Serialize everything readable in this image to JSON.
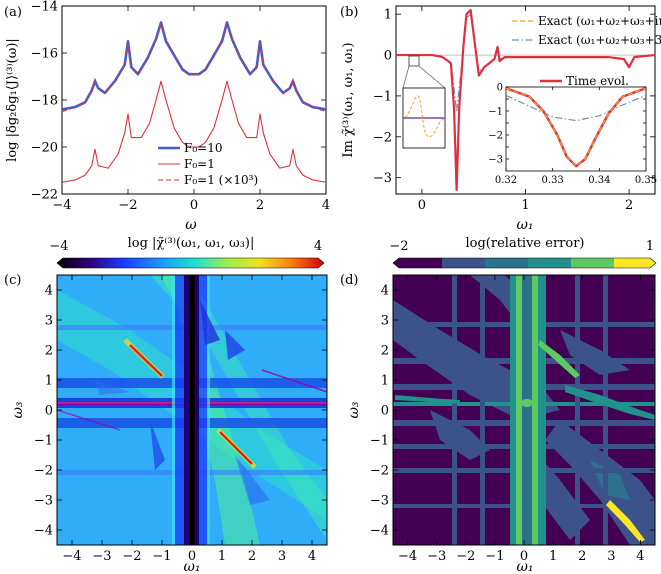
{
  "panels": {
    "a": {
      "label": "(a)",
      "ylabel": "log |δg₂δg₁⟨J⟩⁽³⁾(ω)|",
      "xlabel": "ω"
    },
    "b": {
      "label": "(b)",
      "ylabel": "Im χ̃⁽³⁾(ω₁, ω₁, ω₁)",
      "xlabel": "ω₁"
    },
    "c": {
      "label": "(c)",
      "title": "log |χ̃⁽³⁾(ω₁, ω₁, ω₃)|",
      "xlabel": "ω₁",
      "ylabel": "ω₃"
    },
    "d": {
      "label": "(d)",
      "title": "log(relative error)",
      "xlabel": "ω₁",
      "ylabel": "ω₃"
    }
  },
  "chart_data": [
    {
      "id": "a",
      "type": "line",
      "xlim": [
        -4,
        4
      ],
      "ylim": [
        -22,
        -14
      ],
      "xticks": [
        -4,
        -2,
        0,
        2,
        4
      ],
      "yticks": [
        -22,
        -20,
        -18,
        -16,
        -14
      ],
      "ytick_labels": [
        "−22",
        "−20",
        "−18",
        "−16",
        "−14"
      ],
      "xtick_labels": [
        "−4",
        "−2",
        "0",
        "2",
        "4"
      ],
      "legend_position": "lower-center",
      "series": [
        {
          "name": "F₀=10",
          "color": "#3b5fd9",
          "style": "solid",
          "x": [
            -4,
            -3.6,
            -3.3,
            -3.1,
            -3.0,
            -2.9,
            -2.7,
            -2.4,
            -2.1,
            -2.0,
            -1.9,
            -1.7,
            -1.4,
            -1.15,
            -1.0,
            -0.85,
            -0.6,
            -0.35,
            -0.15,
            0,
            0.15,
            0.35,
            0.6,
            0.85,
            1.0,
            1.15,
            1.4,
            1.7,
            1.9,
            2.0,
            2.1,
            2.4,
            2.7,
            2.9,
            3.0,
            3.1,
            3.3,
            3.6,
            4
          ],
          "y": [
            -18.4,
            -18.3,
            -18.1,
            -17.6,
            -17.2,
            -17.5,
            -17.7,
            -17.2,
            -16.5,
            -15.5,
            -16.6,
            -16.9,
            -16.2,
            -15.4,
            -14.7,
            -15.5,
            -16.1,
            -16.7,
            -16.9,
            -16.9,
            -16.9,
            -16.7,
            -16.1,
            -15.5,
            -14.7,
            -15.4,
            -16.2,
            -16.9,
            -16.6,
            -15.5,
            -16.5,
            -17.2,
            -17.7,
            -17.5,
            -17.2,
            -17.6,
            -18.1,
            -18.3,
            -18.4
          ]
        },
        {
          "name": "F₀=1",
          "color": "#e03040",
          "style": "solid",
          "x": [
            -4,
            -3.6,
            -3.3,
            -3.1,
            -3.0,
            -2.9,
            -2.6,
            -2.3,
            -2.1,
            -2.0,
            -1.9,
            -1.6,
            -1.35,
            -1.15,
            -1.0,
            -0.85,
            -0.6,
            -0.35,
            -0.15,
            0,
            0.15,
            0.35,
            0.6,
            0.85,
            1.0,
            1.15,
            1.35,
            1.6,
            1.9,
            2.0,
            2.1,
            2.3,
            2.6,
            2.9,
            3.0,
            3.1,
            3.3,
            3.6,
            4
          ],
          "y": [
            -21.5,
            -21.4,
            -21.2,
            -20.8,
            -20.1,
            -20.8,
            -20.9,
            -20.3,
            -19.4,
            -18.6,
            -19.6,
            -19.6,
            -19.0,
            -18.0,
            -17.2,
            -18.0,
            -19.2,
            -19.8,
            -20.0,
            -20.0,
            -20.0,
            -19.8,
            -19.2,
            -18.0,
            -17.2,
            -18.0,
            -19.0,
            -19.6,
            -19.6,
            -18.6,
            -19.4,
            -20.3,
            -20.9,
            -20.8,
            -20.1,
            -20.8,
            -21.2,
            -21.4,
            -21.5
          ]
        },
        {
          "name": "F₀=1 (×10³)",
          "color": "#e03040",
          "style": "dashed",
          "x": [
            -4,
            -3.6,
            -3.3,
            -3.1,
            -3.0,
            -2.9,
            -2.7,
            -2.4,
            -2.1,
            -2.0,
            -1.9,
            -1.7,
            -1.4,
            -1.15,
            -1.0,
            -0.85,
            -0.6,
            -0.35,
            -0.15,
            0,
            0.15,
            0.35,
            0.6,
            0.85,
            1.0,
            1.15,
            1.4,
            1.7,
            1.9,
            2.0,
            2.1,
            2.4,
            2.7,
            2.9,
            3.0,
            3.1,
            3.3,
            3.6,
            4
          ],
          "y": [
            -18.5,
            -18.3,
            -18.1,
            -17.6,
            -17.1,
            -17.5,
            -17.7,
            -17.2,
            -16.5,
            -15.6,
            -16.6,
            -16.9,
            -16.2,
            -15.4,
            -14.8,
            -15.4,
            -16.1,
            -16.7,
            -16.9,
            -16.9,
            -16.9,
            -16.7,
            -16.1,
            -15.4,
            -14.8,
            -15.4,
            -16.2,
            -16.9,
            -16.6,
            -15.6,
            -16.5,
            -17.2,
            -17.7,
            -17.5,
            -17.1,
            -17.6,
            -18.1,
            -18.3,
            -18.5
          ]
        }
      ]
    },
    {
      "id": "b",
      "type": "line",
      "xlim": [
        -0.25,
        2.25
      ],
      "ylim": [
        -3.4,
        1.2
      ],
      "xticks": [
        0,
        1,
        2
      ],
      "yticks": [
        -3,
        -2,
        -1,
        0,
        1
      ],
      "ytick_labels": [
        "−3",
        "−2",
        "−1",
        "0",
        "1"
      ],
      "xtick_labels": [
        "0",
        "1",
        "2"
      ],
      "legend_position": "top-right",
      "series": [
        {
          "name": "Exact (ω₁+ω₂+ω₃+iη)",
          "color": "#f0a020",
          "style": "dashed",
          "x": [
            -0.25,
            0.1,
            0.2,
            0.28,
            0.31,
            0.335,
            0.36,
            0.4,
            0.43,
            0.47,
            0.5,
            0.55,
            0.6,
            0.65,
            0.7,
            0.73,
            0.75,
            0.8,
            0.9,
            1.0,
            1.2,
            1.5,
            1.8,
            1.95,
            2.0,
            2.05,
            2.25
          ],
          "y": [
            0,
            0,
            -0.05,
            -0.2,
            -1.3,
            -3.3,
            -1.3,
            0.2,
            1.0,
            1.1,
            0.5,
            -0.5,
            -0.3,
            -0.2,
            -0.1,
            0.2,
            -0.15,
            -0.05,
            -0.05,
            -0.05,
            -0.05,
            -0.05,
            -0.05,
            -0.1,
            -0.3,
            -0.05,
            0
          ]
        },
        {
          "name": "Exact (ω₁+ω₂+ω₃+3iη)",
          "color": "#6f8fb5",
          "style": "dashdot",
          "x": [
            -0.25,
            0.1,
            0.2,
            0.28,
            0.31,
            0.335,
            0.36,
            0.4,
            0.43,
            0.47,
            0.5,
            0.55,
            0.6,
            0.65,
            0.7,
            0.73,
            0.75,
            0.8,
            0.9,
            1.0,
            1.2,
            1.5,
            1.8,
            1.95,
            2.0,
            2.05,
            2.25
          ],
          "y": [
            0,
            0,
            -0.05,
            -0.2,
            -0.8,
            -1.4,
            -0.8,
            0.1,
            0.9,
            1.0,
            0.5,
            -0.4,
            -0.3,
            -0.2,
            -0.1,
            0.15,
            -0.1,
            -0.05,
            -0.05,
            -0.05,
            -0.05,
            -0.05,
            -0.05,
            -0.1,
            -0.25,
            -0.05,
            0
          ]
        },
        {
          "name": "Time evol.",
          "color": "#e03040",
          "style": "solid",
          "x": [
            -0.25,
            0.1,
            0.2,
            0.28,
            0.31,
            0.335,
            0.36,
            0.4,
            0.43,
            0.47,
            0.5,
            0.55,
            0.6,
            0.65,
            0.7,
            0.73,
            0.75,
            0.8,
            0.9,
            1.0,
            1.2,
            1.5,
            1.8,
            1.95,
            2.0,
            2.05,
            2.25
          ],
          "y": [
            0,
            0,
            -0.05,
            -0.2,
            -1.3,
            -3.3,
            -1.3,
            0.2,
            1.0,
            1.1,
            0.5,
            -0.5,
            -0.3,
            -0.2,
            -0.1,
            0.2,
            -0.15,
            -0.05,
            -0.05,
            -0.05,
            -0.05,
            -0.05,
            -0.05,
            -0.1,
            -0.3,
            -0.05,
            0
          ]
        }
      ],
      "inset": {
        "xlim": [
          0.32,
          0.35
        ],
        "ylim": [
          -3.5,
          0
        ],
        "xticks": [
          0.32,
          0.33,
          0.34,
          0.35
        ],
        "xtick_labels": [
          "0.32",
          "0.33",
          "0.34",
          "0.35"
        ],
        "yticks": [
          0,
          -0.5,
          -1,
          -1.5,
          -2,
          -2.5,
          -3
        ],
        "ytick_labels": [
          "0",
          "−0.5",
          "−1",
          "−1.5",
          "−2",
          "−2.5",
          "−3"
        ],
        "series": [
          {
            "name": "Exact (ω₁+ω₂+ω₃+3iη)",
            "color": "#6f8fb5",
            "style": "dashdot",
            "x": [
              0.32,
              0.325,
              0.33,
              0.335,
              0.34,
              0.345,
              0.35
            ],
            "y": [
              -0.35,
              -0.8,
              -1.25,
              -1.4,
              -1.2,
              -0.75,
              -0.35
            ]
          },
          {
            "name": "Time evol.",
            "color": "#e03040",
            "style": "solid",
            "x": [
              0.32,
              0.325,
              0.328,
              0.331,
              0.333,
              0.335,
              0.337,
              0.339,
              0.342,
              0.345,
              0.35
            ],
            "y": [
              -0.05,
              -0.4,
              -1.0,
              -2.0,
              -2.9,
              -3.3,
              -3.0,
              -2.2,
              -1.1,
              -0.4,
              -0.05
            ]
          },
          {
            "name": "Exact (ω₁+ω₂+ω₃+iη)",
            "color": "#f0a020",
            "style": "dashed",
            "x": [
              0.32,
              0.325,
              0.328,
              0.331,
              0.333,
              0.335,
              0.337,
              0.339,
              0.342,
              0.345,
              0.35
            ],
            "y": [
              -0.05,
              -0.4,
              -1.0,
              -2.0,
              -2.9,
              -3.3,
              -3.0,
              -2.2,
              -1.1,
              -0.4,
              -0.05
            ]
          }
        ]
      }
    },
    {
      "id": "c",
      "type": "heatmap",
      "xlim": [
        -4.5,
        4.5
      ],
      "ylim": [
        -4.5,
        4.5
      ],
      "xticks": [
        -4,
        -3,
        -2,
        -1,
        0,
        1,
        2,
        3,
        4
      ],
      "yticks": [
        -4,
        -3,
        -2,
        -1,
        0,
        1,
        2,
        3,
        4
      ],
      "xtick_labels": [
        "−4",
        "−3",
        "−2",
        "−1",
        "0",
        "1",
        "2",
        "3",
        "4"
      ],
      "ytick_labels": [
        "−4",
        "−3",
        "−2",
        "−1",
        "0",
        "1",
        "2",
        "3",
        "4"
      ],
      "colorbar": {
        "range": [
          -4,
          4
        ],
        "tick_labels": [
          "−4",
          "4"
        ],
        "colormap": "jet"
      }
    },
    {
      "id": "d",
      "type": "heatmap",
      "xlim": [
        -4.5,
        4.5
      ],
      "ylim": [
        -4.5,
        4.5
      ],
      "xticks": [
        -4,
        -3,
        -2,
        -1,
        0,
        1,
        2,
        3,
        4
      ],
      "yticks": [
        -4,
        -3,
        -2,
        -1,
        0,
        1,
        2,
        3,
        4
      ],
      "xtick_labels": [
        "−4",
        "−3",
        "−2",
        "−1",
        "0",
        "1",
        "2",
        "3",
        "4"
      ],
      "ytick_labels": [
        "−4",
        "−3",
        "−2",
        "−1",
        "0",
        "1",
        "2",
        "3",
        "4"
      ],
      "colorbar": {
        "range": [
          -2,
          1
        ],
        "tick_labels": [
          "−2",
          "1"
        ],
        "colormap": "viridis"
      }
    }
  ]
}
